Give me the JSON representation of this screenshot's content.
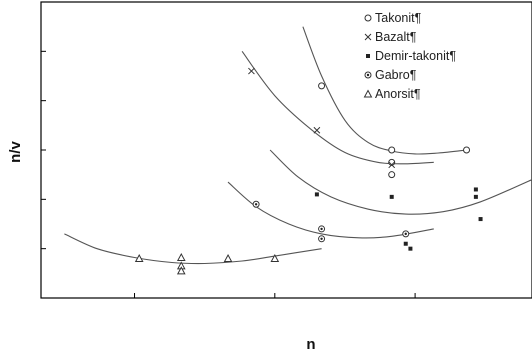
{
  "chart_data": {
    "type": "scatter",
    "title": "",
    "xlabel": "n",
    "ylabel": "n/v",
    "xlim": [
      0,
      10.5
    ],
    "ylim": [
      0,
      6
    ],
    "grid": false,
    "legend_position": "top-right",
    "series": [
      {
        "name": "Takonit¶",
        "marker": "circle-open",
        "points": [
          [
            6.0,
            4.3
          ],
          [
            7.5,
            3.0
          ],
          [
            7.5,
            2.75
          ],
          [
            7.5,
            2.5
          ],
          [
            9.1,
            3.0
          ]
        ],
        "curve": [
          [
            5.6,
            5.5
          ],
          [
            6.0,
            4.5
          ],
          [
            6.5,
            3.6
          ],
          [
            7.0,
            3.15
          ],
          [
            7.5,
            2.98
          ],
          [
            8.0,
            2.92
          ],
          [
            8.5,
            2.94
          ],
          [
            9.1,
            3.0
          ]
        ]
      },
      {
        "name": "Bazalt¶",
        "marker": "x",
        "points": [
          [
            4.5,
            4.6
          ],
          [
            5.9,
            3.4
          ],
          [
            7.5,
            2.7
          ]
        ],
        "curve": [
          [
            4.3,
            5.0
          ],
          [
            5.0,
            4.1
          ],
          [
            5.8,
            3.4
          ],
          [
            6.5,
            2.95
          ],
          [
            7.2,
            2.75
          ],
          [
            7.8,
            2.72
          ],
          [
            8.4,
            2.75
          ]
        ]
      },
      {
        "name": "Demir-takonit¶",
        "marker": "square-filled",
        "points": [
          [
            5.9,
            2.1
          ],
          [
            7.5,
            2.05
          ],
          [
            7.8,
            1.3
          ],
          [
            7.8,
            1.1
          ],
          [
            7.9,
            1.0
          ],
          [
            9.3,
            2.2
          ],
          [
            9.3,
            2.05
          ],
          [
            9.4,
            1.6
          ]
        ],
        "curve": [
          [
            4.9,
            3.0
          ],
          [
            5.5,
            2.45
          ],
          [
            6.2,
            2.05
          ],
          [
            7.0,
            1.8
          ],
          [
            7.8,
            1.7
          ],
          [
            8.6,
            1.75
          ],
          [
            9.4,
            1.95
          ],
          [
            10.5,
            2.4
          ]
        ]
      },
      {
        "name": "Gabro¶",
        "marker": "circle-dot",
        "points": [
          [
            4.6,
            1.9
          ],
          [
            6.0,
            1.4
          ],
          [
            6.0,
            1.2
          ],
          [
            7.8,
            1.3
          ]
        ],
        "curve": [
          [
            4.0,
            2.35
          ],
          [
            4.6,
            1.85
          ],
          [
            5.3,
            1.5
          ],
          [
            6.0,
            1.3
          ],
          [
            6.8,
            1.22
          ],
          [
            7.5,
            1.25
          ],
          [
            8.4,
            1.4
          ]
        ]
      },
      {
        "name": "Anorsit¶",
        "marker": "triangle-open",
        "points": [
          [
            2.1,
            0.8
          ],
          [
            3.0,
            0.82
          ],
          [
            3.0,
            0.65
          ],
          [
            3.0,
            0.55
          ],
          [
            4.0,
            0.8
          ],
          [
            5.0,
            0.8
          ]
        ],
        "curve": [
          [
            0.5,
            1.3
          ],
          [
            1.2,
            1.0
          ],
          [
            2.0,
            0.82
          ],
          [
            2.8,
            0.72
          ],
          [
            3.5,
            0.7
          ],
          [
            4.3,
            0.75
          ],
          [
            5.0,
            0.85
          ],
          [
            6.0,
            1.0
          ]
        ]
      }
    ]
  }
}
